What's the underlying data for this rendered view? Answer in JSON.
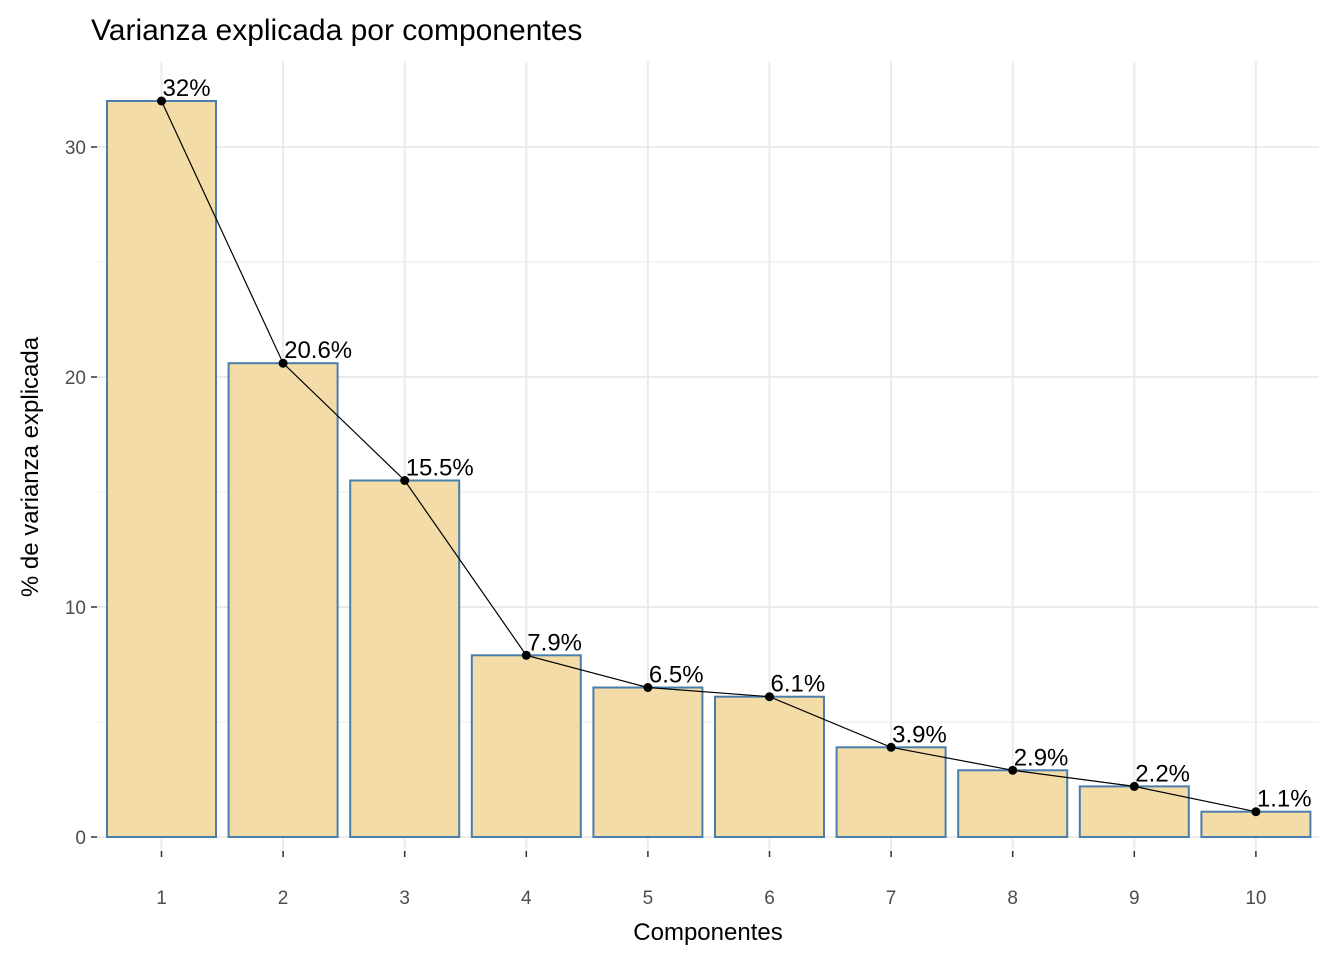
{
  "chart_data": {
    "type": "bar",
    "title": "Varianza explicada por componentes",
    "xlabel": "Componentes",
    "ylabel": "% de varianza explicada",
    "categories": [
      "1",
      "2",
      "3",
      "4",
      "5",
      "6",
      "7",
      "8",
      "9",
      "10"
    ],
    "values": [
      32.0,
      20.6,
      15.5,
      7.9,
      6.5,
      6.1,
      3.9,
      2.9,
      2.2,
      1.1
    ],
    "labels": [
      "32%",
      "20.6%",
      "15.5%",
      "7.9%",
      "6.5%",
      "6.1%",
      "3.9%",
      "2.9%",
      "2.2%",
      "1.1%"
    ],
    "yticks": [
      0,
      10,
      20,
      30
    ],
    "ylim": [
      -1.6,
      33.6
    ],
    "overlay": "line-with-points",
    "grid": true,
    "legend": "none",
    "colors": {
      "bar_fill": "#f3dca8",
      "bar_stroke": "#4a7eaa",
      "line": "#000000",
      "grid": "#ebebeb",
      "tick_label": "#4d4d4d"
    }
  }
}
